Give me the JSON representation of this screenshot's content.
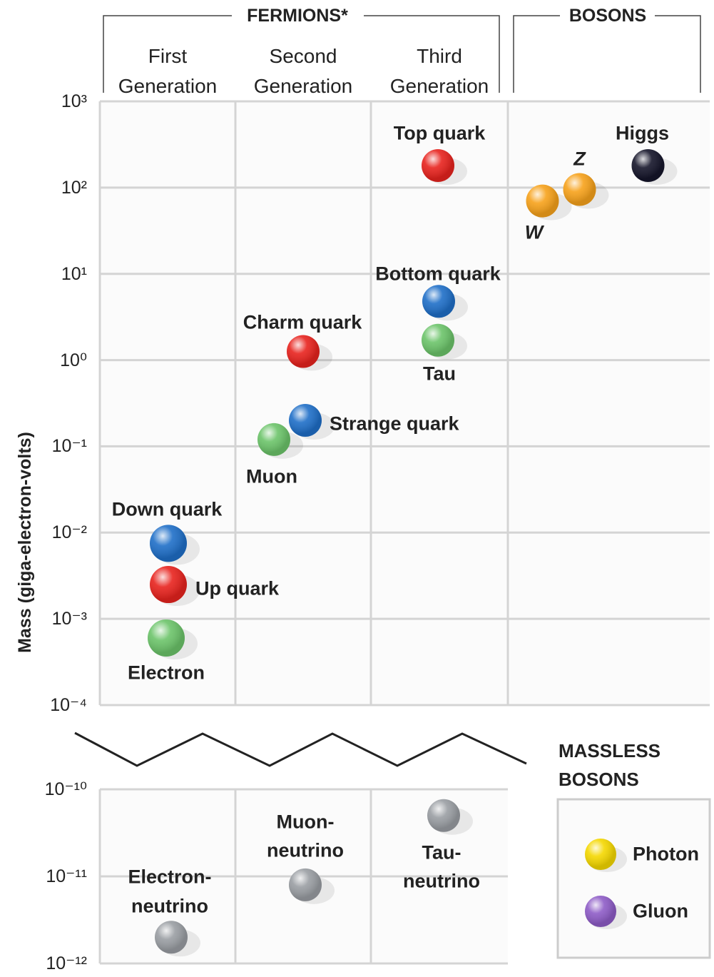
{
  "chart_data": {
    "type": "scatter",
    "log_scale": true,
    "grid": true,
    "y_label": "Mass (giga-electron-volts)",
    "fermions_label": "FERMIONS*",
    "bosons_label": "BOSONS",
    "panels": [
      {
        "ylim": [
          0.0001,
          1000
        ],
        "yticks": [
          {
            "value": 0.0001,
            "label": "10⁻⁴"
          },
          {
            "value": 0.001,
            "label": "10⁻³"
          },
          {
            "value": 0.01,
            "label": "10⁻²"
          },
          {
            "value": 0.1,
            "label": "10⁻¹"
          },
          {
            "value": 1,
            "label": "10⁰"
          },
          {
            "value": 10,
            "label": "10¹"
          },
          {
            "value": 100,
            "label": "10²"
          },
          {
            "value": 1000,
            "label": "10³"
          }
        ]
      },
      {
        "ylim": [
          1e-12,
          1e-10
        ],
        "yticks": [
          {
            "value": 1e-12,
            "label": "10⁻¹²"
          },
          {
            "value": 1e-11,
            "label": "10⁻¹¹"
          },
          {
            "value": 1e-10,
            "label": "10⁻¹⁰"
          }
        ]
      }
    ],
    "columns": [
      {
        "label": "First Generation",
        "particles": [
          {
            "name": "Down quark",
            "mass": 0.0075,
            "color": "#1f6fc8"
          },
          {
            "name": "Up quark",
            "mass": 0.0025,
            "color": "#e8231e"
          },
          {
            "name": "Electron",
            "mass": 0.0006,
            "color": "#6cc46a"
          },
          {
            "name": "Electron-neutrino",
            "mass": 2e-12,
            "color": "#9a9ea3"
          }
        ]
      },
      {
        "label": "Second Generation",
        "particles": [
          {
            "name": "Charm quark",
            "mass": 1.26,
            "color": "#e8231e"
          },
          {
            "name": "Strange quark",
            "mass": 0.2,
            "color": "#1f6fc8"
          },
          {
            "name": "Muon",
            "mass": 0.12,
            "color": "#6cc46a"
          },
          {
            "name": "Muon-neutrino",
            "mass": 8e-12,
            "color": "#9a9ea3"
          }
        ]
      },
      {
        "label": "Third Generation",
        "particles": [
          {
            "name": "Top quark",
            "mass": 180,
            "color": "#e8231e"
          },
          {
            "name": "Bottom quark",
            "mass": 4.8,
            "color": "#1f6fc8"
          },
          {
            "name": "Tau",
            "mass": 1.7,
            "color": "#6cc46a"
          },
          {
            "name": "Tau-neutrino",
            "mass": 5e-11,
            "color": "#9a9ea3"
          }
        ]
      },
      {
        "label": null,
        "particles": [
          {
            "name": "W",
            "mass": 70,
            "color": "#f7a21b"
          },
          {
            "name": "Z",
            "mass": 95,
            "color": "#f7a21b"
          },
          {
            "name": "Higgs",
            "mass": 180,
            "color": "#15152a"
          }
        ]
      }
    ],
    "massless": {
      "title": "MASSLESS BOSONS",
      "particles": [
        {
          "name": "Photon",
          "color": "#f5d800"
        },
        {
          "name": "Gluon",
          "color": "#8e5cc7"
        }
      ]
    }
  }
}
